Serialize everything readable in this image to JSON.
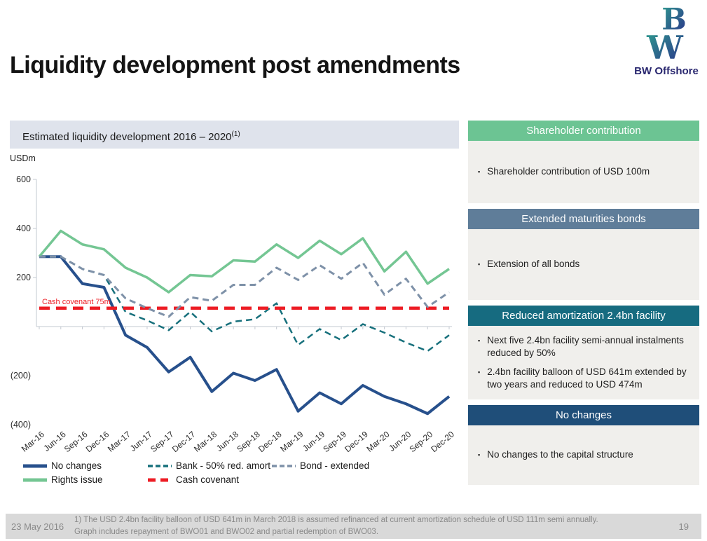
{
  "slide": {
    "title": "Liquidity development post amendments",
    "logo": {
      "letters": "BW",
      "name": "BW Offshore"
    },
    "footer": {
      "date": "23 May 2016",
      "footnote_line1": "1) The USD 2.4bn facility balloon of USD 641m in March 2018 is assumed refinanced at current amortization schedule of USD 111m semi annually.",
      "footnote_line2": "Graph includes repayment of BWO01 and BWO02 and partial redemption of BWO03.",
      "page_number": "19"
    }
  },
  "chart_header": {
    "title": "Estimated liquidity development 2016 – 2020",
    "superscript": "(1)"
  },
  "chart_data": {
    "type": "line",
    "unit_label": "USDm",
    "categories": [
      "Mar-16",
      "Jun-16",
      "Sep-16",
      "Dec-16",
      "Mar-17",
      "Jun-17",
      "Sep-17",
      "Dec-17",
      "Mar-18",
      "Jun-18",
      "Sep-18",
      "Dec-18",
      "Mar-19",
      "Jun-19",
      "Sep-19",
      "Dec-19",
      "Mar-20",
      "Jun-20",
      "Sep-20",
      "Dec-20"
    ],
    "ylim": [
      -400,
      600
    ],
    "y_ticks": [
      {
        "value": 600,
        "label": "600"
      },
      {
        "value": 400,
        "label": "400"
      },
      {
        "value": 200,
        "label": "200"
      },
      {
        "value": -200,
        "label": "(200)"
      },
      {
        "value": -400,
        "label": "(400)"
      }
    ],
    "grid": "off",
    "annotation": {
      "text": "Cash covenant 75m",
      "color": "#ed1c24"
    },
    "series": [
      {
        "name": "No changes",
        "color": "#27508c",
        "style": "solid",
        "width": 4,
        "values": [
          285,
          285,
          175,
          160,
          -35,
          -85,
          -185,
          -125,
          -265,
          -190,
          -220,
          -175,
          -345,
          -270,
          -315,
          -240,
          -285,
          -315,
          -355,
          -285
        ]
      },
      {
        "name": "Rights issue",
        "color": "#74c693",
        "style": "solid",
        "width": 3.5,
        "values": [
          285,
          390,
          335,
          315,
          240,
          200,
          140,
          210,
          205,
          270,
          265,
          335,
          280,
          350,
          295,
          360,
          225,
          305,
          175,
          235
        ]
      },
      {
        "name": "Bank - 50% red. amort",
        "color": "#17707c",
        "style": "dashed",
        "width": 2.5,
        "values": [
          285,
          285,
          235,
          210,
          60,
          25,
          -15,
          60,
          -20,
          20,
          30,
          95,
          -75,
          -10,
          -55,
          10,
          -25,
          -65,
          -100,
          -35
        ]
      },
      {
        "name": "Bond - extended",
        "color": "#7e91a8",
        "style": "dashed",
        "width": 3,
        "values": [
          285,
          285,
          235,
          210,
          115,
          75,
          40,
          120,
          105,
          170,
          170,
          240,
          190,
          250,
          195,
          260,
          130,
          195,
          80,
          140
        ]
      },
      {
        "name": "Cash covenant",
        "color": "#ed1c24",
        "style": "dashed",
        "width": 4.5,
        "values": [
          75,
          75,
          75,
          75,
          75,
          75,
          75,
          75,
          75,
          75,
          75,
          75,
          75,
          75,
          75,
          75,
          75,
          75,
          75,
          75
        ]
      }
    ],
    "legend_rows": [
      [
        "No changes",
        "Bank - 50% red. amort",
        "Bond - extended"
      ],
      [
        "Rights issue",
        "Cash covenant"
      ]
    ],
    "legend_position": "bottom"
  },
  "panels": [
    {
      "title": "Shareholder contribution",
      "color": "#6cc493",
      "bullets": [
        "Shareholder contribution of USD 100m"
      ]
    },
    {
      "title": "Extended maturities bonds",
      "color": "#5f7d99",
      "bullets": [
        "Extension of all bonds"
      ]
    },
    {
      "title": "Reduced amortization 2.4bn facility",
      "color": "#166b80",
      "bullets": [
        "Next five 2.4bn facility semi-annual instalments reduced by 50%",
        "2.4bn facility balloon of USD 641m extended by two years and reduced to USD 474m"
      ]
    },
    {
      "title": "No changes",
      "color": "#1f4e79",
      "bullets": [
        "No changes to the capital structure"
      ]
    }
  ],
  "colors": {
    "chart_header_bg": "#dfe3ec",
    "panel_body_bg": "#f0efec",
    "footer_bg": "#d9d9d9",
    "axis": "#c3c8d0",
    "logo_teal": "#2f9e8f",
    "logo_indigo": "#2b2f8a"
  }
}
